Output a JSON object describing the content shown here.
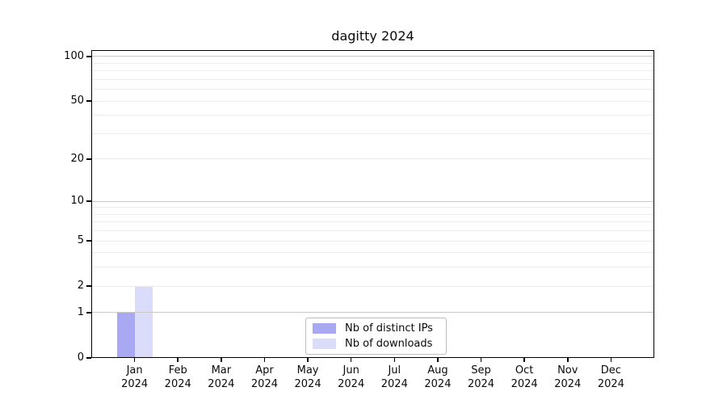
{
  "figure": {
    "title": "dagitty 2024"
  },
  "chart_data": {
    "type": "bar",
    "title": "dagitty 2024",
    "categories": [
      {
        "month": "Jan",
        "year": "2024"
      },
      {
        "month": "Feb",
        "year": "2024"
      },
      {
        "month": "Mar",
        "year": "2024"
      },
      {
        "month": "Apr",
        "year": "2024"
      },
      {
        "month": "May",
        "year": "2024"
      },
      {
        "month": "Jun",
        "year": "2024"
      },
      {
        "month": "Jul",
        "year": "2024"
      },
      {
        "month": "Aug",
        "year": "2024"
      },
      {
        "month": "Sep",
        "year": "2024"
      },
      {
        "month": "Oct",
        "year": "2024"
      },
      {
        "month": "Nov",
        "year": "2024"
      },
      {
        "month": "Dec",
        "year": "2024"
      }
    ],
    "series": [
      {
        "name": "Nb of distinct IPs",
        "color": "#a8a8f3",
        "values": [
          1,
          0,
          0,
          0,
          0,
          0,
          0,
          0,
          0,
          0,
          0,
          0
        ]
      },
      {
        "name": "Nb of downloads",
        "color": "#dbdbfa",
        "values": [
          2,
          0,
          0,
          0,
          0,
          0,
          0,
          0,
          0,
          0,
          0,
          0
        ]
      }
    ],
    "yscale": "log1p",
    "ylim": [
      0,
      111
    ],
    "ytick_values": [
      0,
      1,
      2,
      5,
      10,
      20,
      50,
      100
    ],
    "gridlines": {
      "minor": [
        2,
        3,
        4,
        5,
        6,
        7,
        8,
        9,
        20,
        30,
        40,
        50,
        60,
        70,
        80,
        90
      ],
      "major": [
        1,
        10,
        100
      ]
    },
    "grid": true,
    "legend_position": "bottom-center-inside",
    "colors": {
      "grid_minor": "#ececec",
      "grid_major": "#c9c9c9",
      "axis": "#000000",
      "background": "#ffffff"
    }
  },
  "legend": {
    "items": [
      {
        "label": "Nb of distinct IPs"
      },
      {
        "label": "Nb of downloads"
      }
    ]
  }
}
